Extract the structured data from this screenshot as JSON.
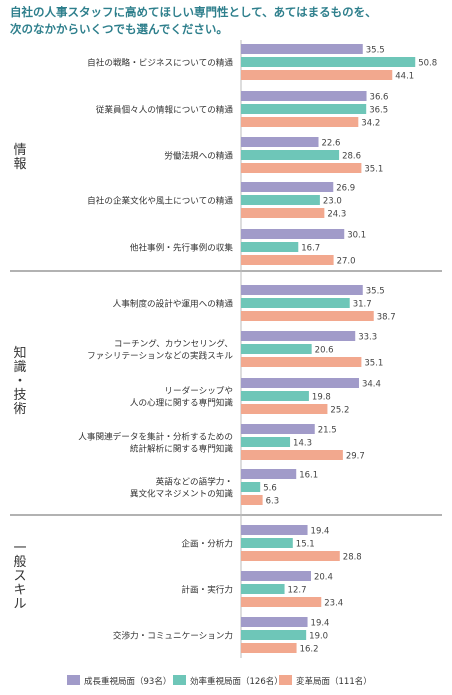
{
  "title": {
    "line1": "自社の人事スタッフに高めてほしい専門性として、あてはまるものを、",
    "line2": "次のなかからいくつでも選んでください。"
  },
  "chart_data": {
    "type": "bar",
    "orientation": "horizontal",
    "xlim": [
      0,
      60
    ],
    "groups": [
      {
        "label": "情報",
        "categories": [
          [
            "自社の戦略・ビジネスについての精通"
          ],
          [
            "従業員個々人の情報についての精通"
          ],
          [
            "労働法規への精通"
          ],
          [
            "自社の企業文化や風土についての精通"
          ],
          [
            "他社事例・先行事例の収集"
          ]
        ]
      },
      {
        "label": "知識・技術",
        "categories": [
          [
            "人事制度の設計や運用への精通"
          ],
          [
            "コーチング、カウンセリング、",
            "ファシリテーションなどの実践スキル"
          ],
          [
            "リーダーシップや",
            "人の心理に関する専門知識"
          ],
          [
            "人事関連データを集計・分析するための",
            "統計解析に関する専門知識"
          ],
          [
            "英語などの語学力・",
            "異文化マネジメントの知識"
          ]
        ]
      },
      {
        "label": "一般スキル",
        "categories": [
          [
            "企画・分析力"
          ],
          [
            "計画・実行力"
          ],
          [
            "交渉力・コミュニケーション力"
          ]
        ]
      }
    ],
    "series": [
      {
        "name": "成長重視局面（93名）",
        "color": "#a19bc9",
        "values": [
          35.5,
          36.6,
          22.6,
          26.9,
          30.1,
          35.5,
          33.3,
          34.4,
          21.5,
          16.1,
          19.4,
          20.4,
          19.4
        ]
      },
      {
        "name": "効率重視局面（126名）",
        "color": "#6ec6b8",
        "values": [
          50.8,
          36.5,
          28.6,
          23.0,
          16.7,
          31.7,
          20.6,
          19.8,
          14.3,
          5.6,
          15.1,
          12.7,
          19.0
        ]
      },
      {
        "name": "変革局面（111名）",
        "color": "#f2a88e",
        "values": [
          44.1,
          34.2,
          35.1,
          24.3,
          27.0,
          38.7,
          35.1,
          25.2,
          29.7,
          6.3,
          28.8,
          23.4,
          16.2
        ]
      }
    ],
    "legend_position": "bottom"
  }
}
